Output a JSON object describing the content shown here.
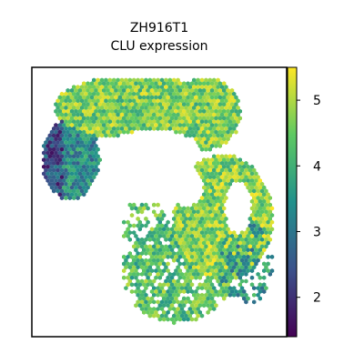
{
  "chart_data": {
    "type": "scatter",
    "title_line1": "ZH916T1",
    "title_line2": "CLU expression",
    "xlabel": "",
    "ylabel": "",
    "colorbar": {
      "colormap": "viridis",
      "range": [
        1.4,
        5.5
      ],
      "ticks": [
        2,
        3,
        4,
        5
      ]
    },
    "colormap_stops": [
      "#440154",
      "#3b528b",
      "#21918c",
      "#5ec962",
      "#fde725"
    ],
    "marker": "hexagon",
    "spatial_regions": [
      {
        "name": "upper-arc",
        "value_mean": 4.6
      },
      {
        "name": "left-lobe",
        "value_mean": 3.4
      },
      {
        "name": "right-lobe",
        "value_mean": 4.7
      },
      {
        "name": "lower-scatter",
        "value_mean": 4.3
      },
      {
        "name": "bottom-right-low",
        "value_mean": 3.6
      }
    ]
  }
}
